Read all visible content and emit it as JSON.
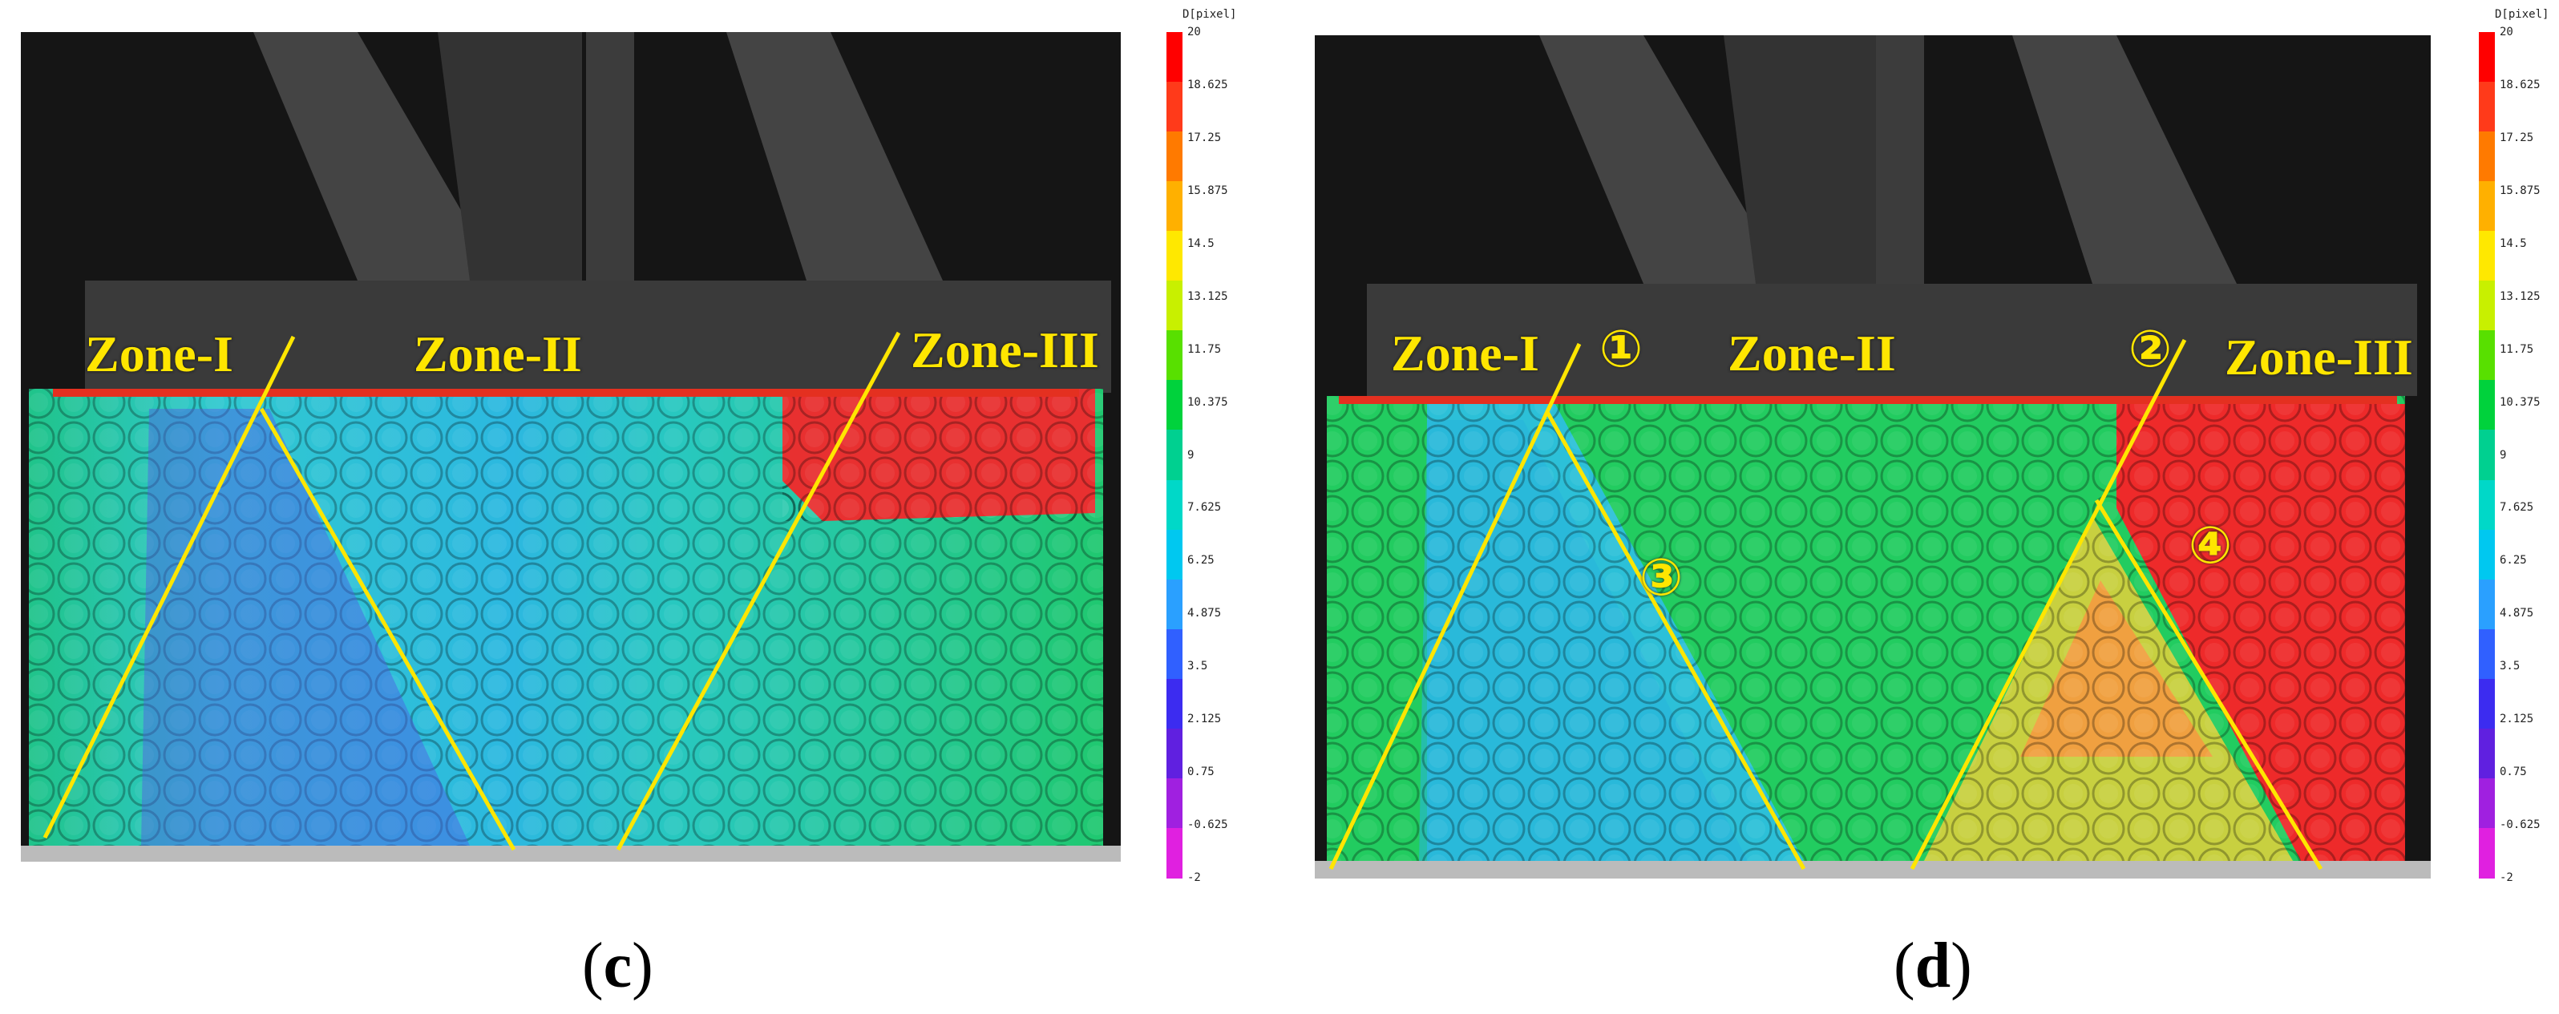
{
  "panels": [
    {
      "caption_open": "(",
      "caption_letter": "c",
      "caption_close": ")",
      "zones": [
        "Zone-I",
        "Zone-II",
        "Zone-III"
      ],
      "markers": []
    },
    {
      "caption_open": "(",
      "caption_letter": "d",
      "caption_close": ")",
      "zones": [
        "Zone-I",
        "Zone-II",
        "Zone-III"
      ],
      "markers": [
        "①",
        "②",
        "③",
        "④"
      ]
    }
  ],
  "colorbar": {
    "title": "D[pixel]",
    "ticks": [
      "20",
      "18.625",
      "17.25",
      "15.875",
      "14.5",
      "13.125",
      "11.75",
      "10.375",
      "9",
      "7.625",
      "6.25",
      "4.875",
      "3.5",
      "2.125",
      "0.75",
      "-0.625",
      "-2"
    ],
    "colors": [
      "#ff0000",
      "#ff3a1a",
      "#ff7a00",
      "#ffb000",
      "#ffe800",
      "#c8f000",
      "#58e000",
      "#00d23c",
      "#00d090",
      "#00d8c8",
      "#00c8f0",
      "#2aa0ff",
      "#3060ff",
      "#3c2cf0",
      "#6020e0",
      "#a020e0",
      "#e020e0"
    ]
  },
  "colors": {
    "zone_line": "#ffe600",
    "background_dark": "#1c1c1c",
    "frame_gray": "#3a3a3a"
  }
}
